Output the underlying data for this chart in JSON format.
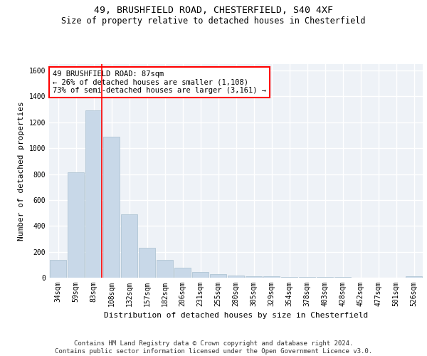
{
  "title_line1": "49, BRUSHFIELD ROAD, CHESTERFIELD, S40 4XF",
  "title_line2": "Size of property relative to detached houses in Chesterfield",
  "xlabel": "Distribution of detached houses by size in Chesterfield",
  "ylabel": "Number of detached properties",
  "bar_labels": [
    "34sqm",
    "59sqm",
    "83sqm",
    "108sqm",
    "132sqm",
    "157sqm",
    "182sqm",
    "206sqm",
    "231sqm",
    "255sqm",
    "280sqm",
    "305sqm",
    "329sqm",
    "354sqm",
    "378sqm",
    "403sqm",
    "428sqm",
    "452sqm",
    "477sqm",
    "501sqm",
    "526sqm"
  ],
  "bar_heights": [
    140,
    815,
    1295,
    1090,
    490,
    232,
    135,
    75,
    42,
    27,
    18,
    12,
    10,
    8,
    5,
    4,
    3,
    2,
    2,
    1,
    13
  ],
  "bar_color": "#c8d8e8",
  "bar_edge_color": "#a8bfce",
  "vline_x": 2,
  "annotation_text": "49 BRUSHFIELD ROAD: 87sqm\n← 26% of detached houses are smaller (1,108)\n73% of semi-detached houses are larger (3,161) →",
  "annotation_box_color": "white",
  "annotation_box_edge_color": "red",
  "ylim": [
    0,
    1650
  ],
  "yticks": [
    0,
    200,
    400,
    600,
    800,
    1000,
    1200,
    1400,
    1600
  ],
  "footer_line1": "Contains HM Land Registry data © Crown copyright and database right 2024.",
  "footer_line2": "Contains public sector information licensed under the Open Government Licence v3.0.",
  "background_color": "#eef2f7",
  "grid_color": "white",
  "title_fontsize": 9.5,
  "subtitle_fontsize": 8.5,
  "ylabel_fontsize": 8,
  "xlabel_fontsize": 8,
  "tick_fontsize": 7,
  "annotation_fontsize": 7.5,
  "footer_fontsize": 6.5
}
